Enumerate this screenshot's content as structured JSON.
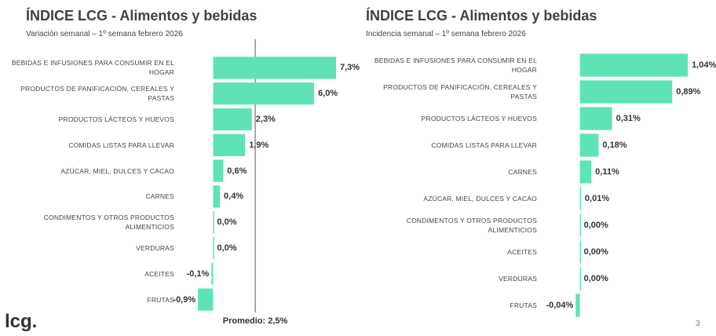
{
  "chart_data": [
    {
      "type": "bar",
      "orientation": "horizontal",
      "title": "ÍNDICE LCG - Alimentos y bebidas",
      "subtitle": "Variación semanal – 1º semana febrero 2026",
      "categories": [
        "BEBIDAS E INFUSIONES PARA CONSUMIR EN EL HOGAR",
        "PRODUCTOS DE PANIFICACIÓN, CEREALES Y PASTAS",
        "PRODUCTOS LÁCTEOS Y HUEVOS",
        "COMIDAS LISTAS PARA LLEVAR",
        "AZÚCAR, MIEL, DULCES Y CACAO",
        "CARNES",
        "CONDIMENTOS Y OTROS PRODUCTOS ALIMENTICIOS",
        "VERDURAS",
        "ACEITES",
        "FRUTAS"
      ],
      "values": [
        7.3,
        6.0,
        2.3,
        1.9,
        0.6,
        0.4,
        0.0,
        0.0,
        -0.1,
        -0.9
      ],
      "value_labels": [
        "7,3%",
        "6,0%",
        "2,3%",
        "1,9%",
        "0,6%",
        "0,4%",
        "0,0%",
        "0,0%",
        "-0,1%",
        "-0,9%"
      ],
      "color": "#5fe3b5",
      "xlim": [
        -1,
        8
      ],
      "reference_line": {
        "value": 2.5,
        "label": "Promedio: 2,5%"
      }
    },
    {
      "type": "bar",
      "orientation": "horizontal",
      "title": "ÍNDICE LCG - Alimentos y bebidas",
      "subtitle": "Incidencia semanal – 1º semana febrero 2026",
      "categories": [
        "BEBIDAS E INFUSIONES PARA CONSUMIR EN EL HOGAR",
        "PRODUCTOS DE PANIFICACIÓN, CEREALES Y PASTAS",
        "PRODUCTOS LÁCTEOS Y HUEVOS",
        "COMIDAS LISTAS PARA LLEVAR",
        "CARNES",
        "AZÚCAR, MIEL, DULCES Y CACAO",
        "CONDIMENTOS Y OTROS PRODUCTOS ALIMENTICIOS",
        "ACEITES",
        "VERDURAS",
        "FRUTAS"
      ],
      "values": [
        1.04,
        0.89,
        0.31,
        0.18,
        0.11,
        0.01,
        0.0,
        0.0,
        0.0,
        -0.04
      ],
      "value_labels": [
        "1,04%",
        "0,89%",
        "0,31%",
        "0,18%",
        "0,11%",
        "0,01%",
        "0,00%",
        "0,00%",
        "0,00%",
        "-0,04%"
      ],
      "color": "#5fe3b5",
      "xlim": [
        -0.05,
        1.1
      ]
    }
  ],
  "logo": "lcg.",
  "page_number": "3"
}
